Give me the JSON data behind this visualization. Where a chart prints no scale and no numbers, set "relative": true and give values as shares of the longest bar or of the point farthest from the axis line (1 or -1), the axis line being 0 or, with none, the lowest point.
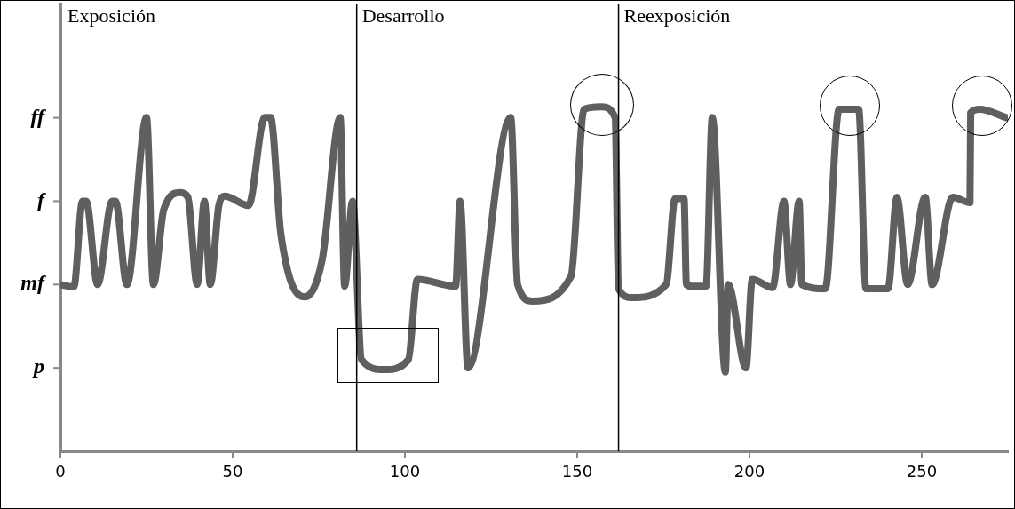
{
  "chart_data": {
    "type": "line",
    "x": [
      0,
      3.9,
      6.4,
      7.5,
      10.8,
      15,
      16,
      19.3,
      25,
      27,
      30,
      34.8,
      37,
      39.7,
      41.8,
      43.5,
      46,
      47.7,
      54.6,
      59.3,
      61,
      64,
      70.9,
      76,
      81.2,
      82.5,
      84.8,
      87.4,
      94,
      101,
      103.6,
      114.7,
      116,
      118.3,
      130.7,
      132.7,
      137,
      148.2,
      152,
      157,
      161,
      162,
      166,
      175.8,
      178.4,
      181,
      181.7,
      183.5,
      187.4,
      189.2,
      193,
      193.8,
      199,
      200.8,
      206.7,
      210,
      211.9,
      214.4,
      215.2,
      222,
      226,
      231.7,
      233.8,
      240.2,
      242.8,
      245.9,
      251,
      253,
      259,
      264,
      264.2,
      266.8,
      274.5
    ],
    "series": [
      {
        "color": "#5f5f5f",
        "values": [
          0.484,
          0.477,
          0.726,
          0.726,
          0.484,
          0.726,
          0.726,
          0.484,
          0.969,
          0.484,
          0.702,
          0.751,
          0.738,
          0.484,
          0.726,
          0.484,
          0.714,
          0.741,
          0.714,
          0.969,
          0.969,
          0.63,
          0.448,
          0.557,
          0.969,
          0.479,
          0.726,
          0.266,
          0.237,
          0.266,
          0.499,
          0.479,
          0.726,
          0.242,
          0.969,
          0.484,
          0.436,
          0.508,
          0.993,
          1,
          0.969,
          0.472,
          0.446,
          0.484,
          0.734,
          0.734,
          0.484,
          0.479,
          0.479,
          0.969,
          0.23,
          0.484,
          0.242,
          0.499,
          0.475,
          0.726,
          0.484,
          0.726,
          0.484,
          0.472,
          0.993,
          0.993,
          0.472,
          0.472,
          0.738,
          0.484,
          0.738,
          0.484,
          0.738,
          0.722,
          0.983,
          0.993,
          0.969
        ]
      }
    ],
    "relative": true,
    "xlim": [
      0,
      275
    ],
    "xticks": [
      0,
      50,
      100,
      150,
      200,
      250
    ],
    "ref_lines": [
      {
        "axis": "x",
        "value": 86,
        "label": "Desarrollo",
        "color": "#000000"
      },
      {
        "axis": "x",
        "value": 162,
        "label": "Reexposición",
        "color": "#000000"
      }
    ],
    "annotations": [
      "Exposición",
      "p",
      "mf",
      "f",
      "ff"
    ],
    "grid": false,
    "legend": false,
    "marker": "none",
    "line_style": "solid"
  }
}
